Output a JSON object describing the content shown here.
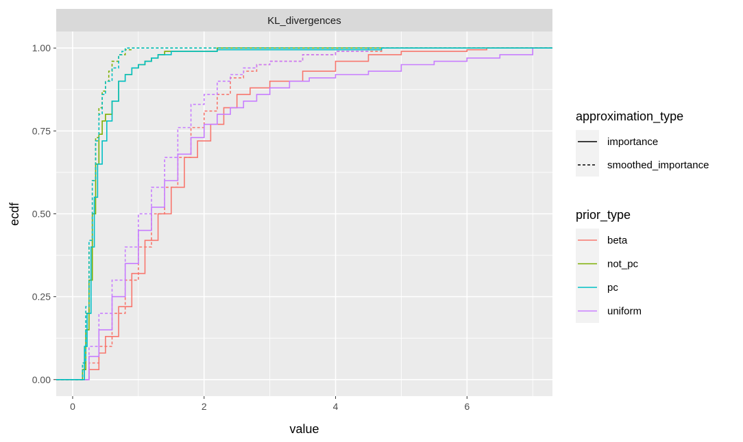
{
  "chart_data": {
    "type": "line",
    "facet_title": "KL_divergences",
    "xlabel": "value",
    "ylabel": "ecdf",
    "xlim": [
      -0.25,
      7.3
    ],
    "ylim": [
      -0.05,
      1.05
    ],
    "x_ticks": [
      0,
      2,
      4,
      6
    ],
    "x_tick_labels": [
      "0",
      "2",
      "4",
      "6"
    ],
    "y_ticks": [
      0,
      0.25,
      0.5,
      0.75,
      1.0
    ],
    "y_tick_labels": [
      "0.00",
      "0.25",
      "0.50",
      "0.75",
      "1.00"
    ],
    "grid": true,
    "panel_background": "#ebebeb",
    "strip_background": "#d9d9d9",
    "legend_position": "right",
    "legends": [
      {
        "title": "approximation_type",
        "entries": [
          {
            "label": "importance",
            "linetype": "solid"
          },
          {
            "label": "smoothed_importance",
            "linetype": "dashed"
          }
        ]
      },
      {
        "title": "prior_type",
        "entries": [
          {
            "label": "beta",
            "color": "#f8766d"
          },
          {
            "label": "not_pc",
            "color": "#7cae00"
          },
          {
            "label": "pc",
            "color": "#00bfc4"
          },
          {
            "label": "uniform",
            "color": "#c77cff"
          }
        ]
      }
    ],
    "series": [
      {
        "prior_type": "beta",
        "approximation_type": "importance",
        "color": "#f8766d",
        "linetype": "solid",
        "x": [
          -0.25,
          0.15,
          0.25,
          0.4,
          0.5,
          0.7,
          0.9,
          1.1,
          1.3,
          1.5,
          1.7,
          1.9,
          2.1,
          2.3,
          2.5,
          2.7,
          3.0,
          3.5,
          4.0,
          4.5,
          5.0,
          6.0,
          6.3,
          7.3
        ],
        "y": [
          0,
          0,
          0.03,
          0.08,
          0.13,
          0.22,
          0.32,
          0.42,
          0.5,
          0.58,
          0.67,
          0.72,
          0.77,
          0.82,
          0.86,
          0.88,
          0.9,
          0.93,
          0.96,
          0.98,
          0.99,
          0.995,
          1.0,
          1.0
        ]
      },
      {
        "prior_type": "beta",
        "approximation_type": "smoothed_importance",
        "color": "#f8766d",
        "linetype": "dashed",
        "x": [
          -0.25,
          0.15,
          0.25,
          0.4,
          0.6,
          0.8,
          1.0,
          1.2,
          1.4,
          1.6,
          1.8,
          2.0,
          2.2,
          2.4,
          2.6,
          2.8,
          3.0,
          3.5,
          4.0,
          4.7,
          7.3
        ],
        "y": [
          0,
          0,
          0.05,
          0.1,
          0.2,
          0.3,
          0.4,
          0.5,
          0.58,
          0.67,
          0.76,
          0.81,
          0.86,
          0.91,
          0.93,
          0.95,
          0.96,
          0.98,
          0.99,
          1.0,
          1.0
        ]
      },
      {
        "prior_type": "uniform",
        "approximation_type": "importance",
        "color": "#c77cff",
        "linetype": "solid",
        "x": [
          -0.25,
          0.15,
          0.25,
          0.4,
          0.6,
          0.8,
          1.0,
          1.2,
          1.4,
          1.6,
          1.8,
          2.0,
          2.2,
          2.4,
          2.6,
          2.8,
          3.0,
          3.3,
          3.6,
          4.0,
          4.5,
          5.0,
          5.5,
          6.0,
          6.5,
          7.0,
          7.3
        ],
        "y": [
          0,
          0,
          0.07,
          0.15,
          0.25,
          0.35,
          0.45,
          0.52,
          0.6,
          0.68,
          0.73,
          0.77,
          0.8,
          0.82,
          0.84,
          0.86,
          0.88,
          0.9,
          0.91,
          0.92,
          0.93,
          0.95,
          0.96,
          0.97,
          0.98,
          1.0,
          1.0
        ]
      },
      {
        "prior_type": "uniform",
        "approximation_type": "smoothed_importance",
        "color": "#c77cff",
        "linetype": "dashed",
        "x": [
          -0.25,
          0.15,
          0.25,
          0.4,
          0.6,
          0.8,
          1.0,
          1.2,
          1.4,
          1.6,
          1.8,
          2.0,
          2.2,
          2.4,
          2.6,
          2.8,
          3.0,
          3.5,
          4.0,
          4.5,
          7.3
        ],
        "y": [
          0,
          0,
          0.1,
          0.2,
          0.3,
          0.4,
          0.5,
          0.58,
          0.67,
          0.76,
          0.83,
          0.86,
          0.9,
          0.92,
          0.94,
          0.95,
          0.96,
          0.98,
          0.99,
          1.0,
          1.0
        ]
      },
      {
        "prior_type": "not_pc",
        "approximation_type": "importance",
        "color": "#7cae00",
        "linetype": "solid",
        "x": [
          -0.25,
          0.12,
          0.15,
          0.2,
          0.25,
          0.3,
          0.35,
          0.4,
          0.45,
          0.5,
          0.6,
          0.7,
          0.8,
          0.9,
          1.0,
          1.1,
          1.2,
          1.3,
          1.4,
          1.5,
          2.2,
          7.3
        ],
        "y": [
          0,
          0,
          0.03,
          0.15,
          0.3,
          0.5,
          0.65,
          0.74,
          0.78,
          0.8,
          0.84,
          0.9,
          0.92,
          0.94,
          0.95,
          0.96,
          0.97,
          0.98,
          0.99,
          0.99,
          1.0,
          1.0
        ]
      },
      {
        "prior_type": "not_pc",
        "approximation_type": "smoothed_importance",
        "color": "#7cae00",
        "linetype": "dashed",
        "x": [
          -0.25,
          0.12,
          0.15,
          0.2,
          0.25,
          0.3,
          0.35,
          0.4,
          0.45,
          0.5,
          0.55,
          0.6,
          0.7,
          0.8,
          0.9,
          7.3
        ],
        "y": [
          0,
          0,
          0.05,
          0.2,
          0.4,
          0.6,
          0.73,
          0.82,
          0.87,
          0.9,
          0.93,
          0.96,
          0.98,
          0.995,
          1.0,
          1.0
        ]
      },
      {
        "prior_type": "pc",
        "approximation_type": "importance",
        "color": "#00bfc4",
        "linetype": "solid",
        "x": [
          -0.25,
          0.13,
          0.18,
          0.22,
          0.28,
          0.33,
          0.38,
          0.45,
          0.52,
          0.6,
          0.7,
          0.8,
          0.9,
          1.0,
          1.1,
          1.2,
          1.3,
          1.5,
          2.2,
          4.7,
          7.3
        ],
        "y": [
          0,
          0,
          0.1,
          0.2,
          0.4,
          0.55,
          0.65,
          0.72,
          0.78,
          0.84,
          0.9,
          0.92,
          0.94,
          0.95,
          0.96,
          0.97,
          0.98,
          0.99,
          0.995,
          1.0,
          1.0
        ]
      },
      {
        "prior_type": "pc",
        "approximation_type": "smoothed_importance",
        "color": "#00bfc4",
        "linetype": "dashed",
        "x": [
          -0.25,
          0.12,
          0.15,
          0.2,
          0.25,
          0.3,
          0.35,
          0.4,
          0.45,
          0.5,
          0.6,
          0.7,
          0.75,
          0.8,
          7.3
        ],
        "y": [
          0,
          0,
          0.05,
          0.22,
          0.42,
          0.6,
          0.72,
          0.8,
          0.86,
          0.9,
          0.94,
          0.98,
          0.99,
          1.0,
          1.0
        ]
      }
    ]
  }
}
